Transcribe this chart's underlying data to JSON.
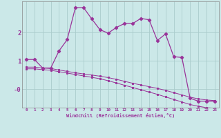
{
  "xlabel": "Windchill (Refroidissement éolien,°C)",
  "xticks": [
    0,
    1,
    2,
    3,
    4,
    5,
    6,
    7,
    8,
    9,
    10,
    11,
    12,
    13,
    14,
    15,
    16,
    17,
    18,
    19,
    20,
    21,
    22,
    23
  ],
  "ylim": [
    -0.65,
    3.1
  ],
  "xlim": [
    -0.5,
    23.5
  ],
  "bg_color": "#cbe8e8",
  "line_color": "#993399",
  "grid_color": "#aacccc",
  "series1_x": [
    0,
    1,
    2,
    3,
    4,
    5,
    6,
    7,
    8,
    9,
    10,
    11,
    12,
    13,
    14,
    15,
    16,
    17,
    18,
    19,
    20,
    21,
    22,
    23
  ],
  "series1_y": [
    1.05,
    1.05,
    0.75,
    0.75,
    1.35,
    1.75,
    2.88,
    2.88,
    2.48,
    2.1,
    1.98,
    2.18,
    2.32,
    2.32,
    2.5,
    2.45,
    1.72,
    1.95,
    1.15,
    1.12,
    -0.32,
    -0.42,
    -0.42,
    -0.42
  ],
  "series2_x": [
    0,
    1,
    2,
    3,
    4,
    5,
    6,
    7,
    8,
    9,
    10,
    11,
    12,
    13,
    14,
    15,
    16,
    17,
    18,
    19,
    20,
    21,
    22,
    23
  ],
  "series2_y": [
    0.78,
    0.78,
    0.75,
    0.73,
    0.68,
    0.63,
    0.58,
    0.54,
    0.5,
    0.46,
    0.41,
    0.35,
    0.28,
    0.21,
    0.15,
    0.09,
    0.03,
    -0.04,
    -0.12,
    -0.2,
    -0.28,
    -0.34,
    -0.38,
    -0.4
  ],
  "series3_x": [
    0,
    1,
    2,
    3,
    4,
    5,
    6,
    7,
    8,
    9,
    10,
    11,
    12,
    13,
    14,
    15,
    16,
    17,
    18,
    19,
    20,
    21,
    22,
    23
  ],
  "series3_y": [
    0.72,
    0.72,
    0.69,
    0.67,
    0.62,
    0.57,
    0.52,
    0.47,
    0.42,
    0.37,
    0.3,
    0.22,
    0.14,
    0.06,
    -0.02,
    -0.1,
    -0.18,
    -0.27,
    -0.36,
    -0.45,
    -0.54,
    -0.6,
    -0.65,
    -0.67
  ],
  "ytick_positions": [
    2,
    1,
    0
  ],
  "ytick_labels": [
    "2",
    "1",
    "-0"
  ]
}
